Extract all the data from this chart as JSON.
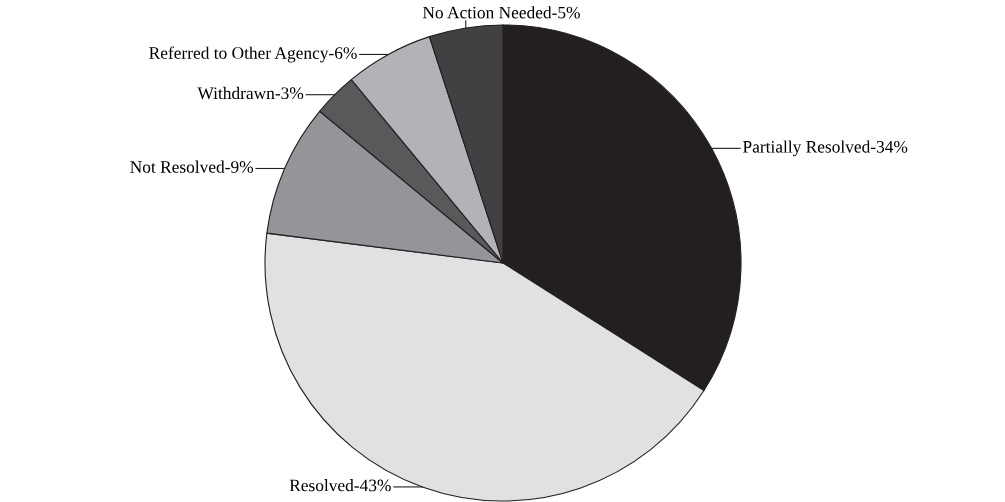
{
  "chart_data": {
    "type": "pie",
    "categories": [
      "Partially Resolved-34%",
      "Resolved-43%",
      "Not Resolved-9%",
      "Withdrawn-3%",
      "Referred to Other Agency-6%",
      "No Action Needed-5%"
    ],
    "values": [
      34,
      43,
      9,
      3,
      6,
      5
    ],
    "colors": [
      "#231f20",
      "#e0e1e3",
      "#939598",
      "#58595b",
      "#b1b3b6",
      "#414042"
    ],
    "legend": false
  }
}
